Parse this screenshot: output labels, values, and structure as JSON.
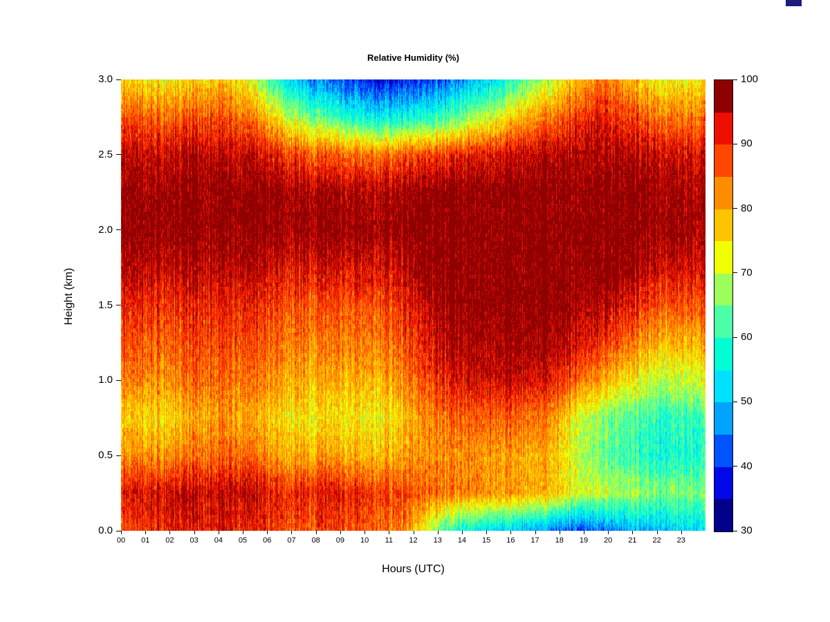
{
  "figure": {
    "background": "#ffffff",
    "artifact_color": "#1b1b80"
  },
  "chart_data": {
    "type": "heatmap",
    "title": "Relative Humidity (%)",
    "xlabel": "Hours (UTC)",
    "ylabel": "Height (km)",
    "x_ticks": [
      "00",
      "01",
      "02",
      "03",
      "04",
      "05",
      "06",
      "07",
      "08",
      "09",
      "10",
      "11",
      "12",
      "13",
      "14",
      "15",
      "16",
      "17",
      "18",
      "19",
      "20",
      "21",
      "22",
      "23"
    ],
    "y_ticks": [
      "3.0",
      "2.5",
      "2.0",
      "1.5",
      "1.0",
      "0.5",
      "0.0"
    ],
    "x_range": [
      0,
      24
    ],
    "y_range": [
      0,
      3
    ],
    "grid_on": false,
    "legend_position": "right-colorbar",
    "colorbar": {
      "min": 30,
      "max": 100,
      "step": 5,
      "ticks": [
        100,
        90,
        80,
        70,
        60,
        50,
        40,
        30
      ],
      "colors_low_to_high": [
        "#00008B",
        "#0008E8",
        "#0053FF",
        "#00A3FF",
        "#00E1FF",
        "#00FFD5",
        "#4DFFA6",
        "#9BFF5C",
        "#F2FF00",
        "#FFC400",
        "#FF8D00",
        "#FF4700",
        "#ED0F00",
        "#8F0000"
      ]
    },
    "grid": {
      "units": "%",
      "hours": [
        0,
        1,
        2,
        3,
        4,
        5,
        6,
        7,
        8,
        9,
        10,
        11,
        12,
        13,
        14,
        15,
        16,
        17,
        18,
        19,
        20,
        21,
        22,
        23
      ],
      "heights_km": [
        0.0,
        0.25,
        0.5,
        0.75,
        1.0,
        1.25,
        1.5,
        1.75,
        2.0,
        2.25,
        2.5,
        2.75,
        3.0
      ],
      "values": [
        [
          88,
          90,
          92,
          92,
          93,
          91,
          89,
          88,
          88,
          87,
          86,
          84,
          72,
          58,
          55,
          53,
          50,
          45,
          42,
          44,
          48,
          50,
          52,
          54
        ],
        [
          93,
          94,
          95,
          94,
          96,
          95,
          92,
          91,
          92,
          91,
          90,
          88,
          86,
          84,
          83,
          82,
          80,
          78,
          72,
          70,
          68,
          66,
          66,
          67
        ],
        [
          83,
          82,
          82,
          84,
          86,
          85,
          81,
          80,
          80,
          79,
          79,
          80,
          82,
          82,
          82,
          81,
          80,
          78,
          70,
          64,
          60,
          58,
          58,
          60
        ],
        [
          78,
          76,
          76,
          80,
          82,
          80,
          77,
          75,
          74,
          74,
          74,
          76,
          82,
          85,
          86,
          86,
          85,
          82,
          72,
          66,
          62,
          60,
          60,
          63
        ],
        [
          84,
          83,
          82,
          85,
          86,
          84,
          82,
          80,
          79,
          79,
          80,
          82,
          88,
          92,
          94,
          95,
          94,
          92,
          86,
          80,
          74,
          70,
          70,
          73
        ],
        [
          88,
          87,
          86,
          88,
          89,
          87,
          85,
          84,
          83,
          83,
          84,
          86,
          92,
          96,
          98,
          98,
          98,
          97,
          94,
          90,
          84,
          80,
          79,
          81
        ],
        [
          92,
          91,
          90,
          91,
          92,
          91,
          89,
          88,
          87,
          87,
          88,
          90,
          95,
          99,
          100,
          100,
          100,
          100,
          98,
          96,
          92,
          88,
          87,
          89
        ],
        [
          97,
          96,
          95,
          96,
          96,
          96,
          94,
          93,
          93,
          93,
          94,
          95,
          99,
          100,
          100,
          100,
          100,
          100,
          100,
          100,
          98,
          95,
          94,
          95
        ],
        [
          100,
          100,
          100,
          99,
          100,
          100,
          100,
          99,
          99,
          99,
          99,
          100,
          100,
          100,
          100,
          100,
          100,
          100,
          100,
          100,
          100,
          99,
          99,
          99
        ],
        [
          99,
          99,
          99,
          99,
          100,
          100,
          99,
          98,
          97,
          97,
          97,
          98,
          99,
          100,
          100,
          100,
          100,
          100,
          100,
          100,
          100,
          99,
          98,
          98
        ],
        [
          96,
          95,
          95,
          96,
          96,
          95,
          92,
          88,
          86,
          85,
          85,
          86,
          88,
          90,
          92,
          94,
          95,
          96,
          97,
          97,
          96,
          95,
          94,
          95
        ],
        [
          88,
          86,
          85,
          87,
          88,
          84,
          76,
          68,
          62,
          58,
          56,
          56,
          58,
          62,
          68,
          74,
          80,
          84,
          90,
          92,
          88,
          85,
          84,
          86
        ],
        [
          78,
          75,
          74,
          76,
          78,
          72,
          60,
          50,
          44,
          40,
          38,
          38,
          40,
          44,
          50,
          56,
          64,
          70,
          80,
          85,
          78,
          74,
          73,
          76
        ]
      ]
    }
  }
}
